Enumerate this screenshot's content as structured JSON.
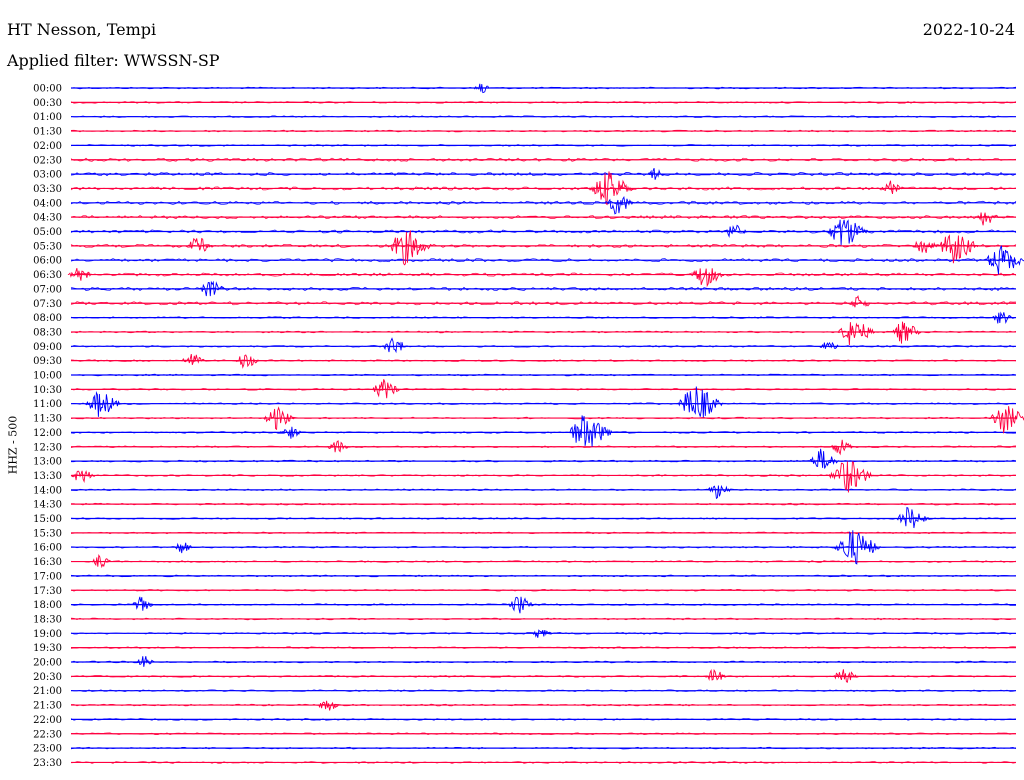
{
  "header": {
    "station": "HT Nesson, Tempi",
    "date": "2022-10-24",
    "filter": "Applied filter: WWSSN-SP"
  },
  "chart_data": {
    "type": "line",
    "ylabel": "HHZ - 500",
    "row_labels": [
      "00:00",
      "00:30",
      "01:00",
      "01:30",
      "02:00",
      "02:30",
      "03:00",
      "03:30",
      "04:00",
      "04:30",
      "05:00",
      "05:30",
      "06:00",
      "06:30",
      "07:00",
      "07:30",
      "08:00",
      "08:30",
      "09:00",
      "09:30",
      "10:00",
      "10:30",
      "11:00",
      "11:30",
      "12:00",
      "12:30",
      "13:00",
      "13:30",
      "14:00",
      "14:30",
      "15:00",
      "15:30",
      "16:00",
      "16:30",
      "17:00",
      "17:30",
      "18:00",
      "18:30",
      "19:00",
      "19:30",
      "20:00",
      "20:30",
      "21:00",
      "21:30",
      "22:00",
      "22:30",
      "23:00",
      "23:30"
    ],
    "x_range_minutes": [
      0,
      30
    ],
    "series_colors": {
      "odd_hour_rows": "#0000ff",
      "half_hour_rows": "#ff0040"
    },
    "events_note": "burst events: [row_index, minute_offset, relative_amplitude]",
    "events": [
      [
        0,
        13.0,
        0.3
      ],
      [
        6,
        18.5,
        0.4
      ],
      [
        7,
        17.0,
        1.5
      ],
      [
        7,
        26.0,
        0.5
      ],
      [
        8,
        17.3,
        0.9
      ],
      [
        9,
        29.0,
        0.6
      ],
      [
        10,
        24.5,
        1.4
      ],
      [
        10,
        21.0,
        0.6
      ],
      [
        11,
        10.6,
        1.5
      ],
      [
        11,
        28.0,
        1.4
      ],
      [
        11,
        27.0,
        0.7
      ],
      [
        11,
        4.0,
        0.7
      ],
      [
        12,
        29.5,
        1.3
      ],
      [
        13,
        20.1,
        1.0
      ],
      [
        13,
        0.2,
        0.6
      ],
      [
        14,
        4.4,
        0.7
      ],
      [
        15,
        25.0,
        0.5
      ],
      [
        16,
        29.5,
        0.5
      ],
      [
        17,
        24.8,
        1.2
      ],
      [
        17,
        26.4,
        0.9
      ],
      [
        18,
        10.2,
        0.7
      ],
      [
        18,
        24.0,
        0.4
      ],
      [
        19,
        3.8,
        0.6
      ],
      [
        19,
        5.5,
        0.6
      ],
      [
        21,
        9.9,
        0.8
      ],
      [
        22,
        0.9,
        1.1
      ],
      [
        22,
        19.8,
        1.6
      ],
      [
        23,
        6.5,
        0.9
      ],
      [
        23,
        29.6,
        1.2
      ],
      [
        24,
        16.3,
        1.6
      ],
      [
        24,
        6.9,
        0.5
      ],
      [
        25,
        8.4,
        0.5
      ],
      [
        25,
        24.4,
        0.6
      ],
      [
        26,
        23.8,
        0.9
      ],
      [
        27,
        0.3,
        0.6
      ],
      [
        27,
        24.6,
        1.5
      ],
      [
        28,
        20.5,
        0.6
      ],
      [
        30,
        26.6,
        1.0
      ],
      [
        32,
        24.8,
        1.6
      ],
      [
        32,
        3.5,
        0.4
      ],
      [
        33,
        0.9,
        0.4
      ],
      [
        36,
        14.2,
        0.7
      ],
      [
        36,
        2.2,
        0.5
      ],
      [
        38,
        14.9,
        0.4
      ],
      [
        40,
        2.3,
        0.4
      ],
      [
        41,
        20.4,
        0.5
      ],
      [
        41,
        24.5,
        0.6
      ],
      [
        43,
        8.1,
        0.5
      ]
    ],
    "axis_range_note": "vertical rows cover 24 hours, 30 minutes per row"
  }
}
